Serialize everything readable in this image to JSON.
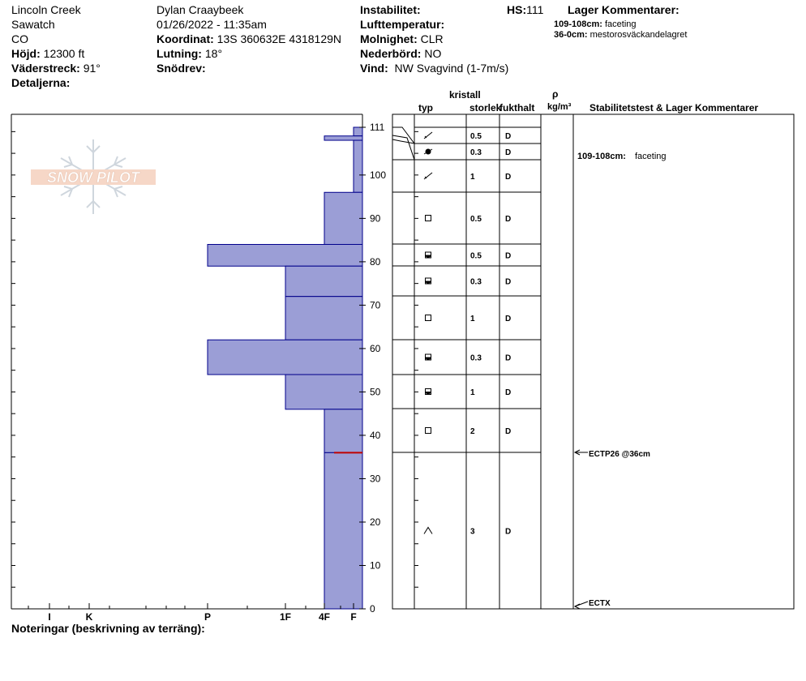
{
  "header": {
    "location": "Lincoln Creek",
    "range": "Sawatch",
    "state": "CO",
    "elevation_label": "Höjd:",
    "elevation_value": "12300 ft",
    "aspect_label": "Väderstreck:",
    "aspect_value": "91°",
    "details_label": "Detaljerna:",
    "observer": "Dylan Craaybeek",
    "datetime": "01/26/2022 - 11:35am",
    "coord_label": "Koordinat:",
    "coord_value": "13S 360632E 4318129N",
    "slope_label": "Lutning:",
    "slope_value": "18°",
    "drift_label": "Snödrev:",
    "instability_label": "Instabilitet:",
    "airtemp_label": "Lufttemperatur:",
    "sky_label": "Molnighet:",
    "sky_value": "CLR",
    "precip_label": "Nederbörd:",
    "precip_value": "NO",
    "wind_label": "Vind:",
    "wind_value": "NW Svagvind (1-7m/s)",
    "hs_label": "HS:",
    "hs_value": "111",
    "layer_comments_title": "Lager Kommentarer:",
    "layer_comments": [
      {
        "range": "109-108cm:",
        "text": "faceting"
      },
      {
        "range": "36-0cm:",
        "text": "mestorosväckandelagret"
      }
    ]
  },
  "logo_text": "SNOW PILOT",
  "footer": {
    "notes_label": "Noteringar (beskrivning av terräng):"
  },
  "table_headers": {
    "crystal": "kristall",
    "type": "typ",
    "size": "storlek",
    "moisture": "fukthalt",
    "rho": "ρ",
    "density_unit": "kg/m³",
    "stability": "Stabilitetstest & Lager Kommentarer"
  },
  "stability_comments": [
    {
      "depth": 108.5,
      "text": "109-108cm:",
      "extra": "faceting"
    }
  ],
  "stability_tests": [
    {
      "depth": 36,
      "text": "ECTP26 @36cm"
    },
    {
      "depth": 0,
      "text": "ECTX"
    }
  ],
  "colors": {
    "bar_fill": "#9b9ed6",
    "bar_stroke": "#00008b",
    "critical_layer": "#c00000"
  },
  "chart_data": {
    "type": "bar",
    "orientation": "horizontal",
    "xlabel": "",
    "ylabel": "",
    "ylim": [
      0,
      111
    ],
    "yticks": [
      0,
      10,
      20,
      30,
      40,
      50,
      60,
      70,
      80,
      90,
      100,
      111
    ],
    "hardness_ticks": [
      "I",
      "K",
      "P",
      "1F",
      "4F",
      "F"
    ],
    "critical_depth": 36,
    "layers": [
      {
        "top": 111,
        "bottom": 109,
        "hardness": "F",
        "grain": "mixed",
        "size": "",
        "moisture": ""
      },
      {
        "top": 109,
        "bottom": 108,
        "hardness": "4F",
        "grain": "facet",
        "size": "0.5",
        "moisture": "D"
      },
      {
        "top": 108,
        "bottom": 96,
        "hardness": "F",
        "grain": "round-facet",
        "size": "0.3",
        "moisture": "D"
      },
      {
        "top": 96,
        "bottom": 84,
        "hardness": "4F",
        "grain": "decomposing",
        "size": "1",
        "moisture": "D"
      },
      {
        "top": 84,
        "bottom": 79,
        "hardness": "P",
        "grain": "facet",
        "size": "0.5",
        "moisture": "D"
      },
      {
        "top": 79,
        "bottom": 72,
        "hardness": "1F",
        "grain": "mixed",
        "size": "0.5",
        "moisture": "D"
      },
      {
        "top": 72,
        "bottom": 62,
        "hardness": "1F",
        "grain": "mixed",
        "size": "0.3",
        "moisture": "D"
      },
      {
        "top": 62,
        "bottom": 54,
        "hardness": "P",
        "grain": "facet",
        "size": "1",
        "moisture": "D"
      },
      {
        "top": 54,
        "bottom": 46,
        "hardness": "1F",
        "grain": "mixed",
        "size": "0.3",
        "moisture": "D"
      },
      {
        "top": 46,
        "bottom": 36,
        "hardness": "4F",
        "grain": "mixed",
        "size": "1",
        "moisture": "D"
      },
      {
        "top": 36,
        "bottom": 0,
        "hardness": "4F",
        "grain": "facet",
        "size": "2",
        "moisture": "D"
      }
    ],
    "table_layers": [
      {
        "top": 111,
        "bottom": 109,
        "grain": "decomposing",
        "size": "0.5",
        "moisture": "D"
      },
      {
        "top": 109,
        "bottom": 108,
        "grain": "round-facet",
        "size": "0.3",
        "moisture": "D"
      },
      {
        "top": 108,
        "bottom": 96,
        "grain": "decomposing",
        "size": "1",
        "moisture": "D"
      },
      {
        "top": 96,
        "bottom": 84,
        "grain": "facet",
        "size": "0.5",
        "moisture": "D"
      },
      {
        "top": 84,
        "bottom": 79,
        "grain": "mixed",
        "size": "0.5",
        "moisture": "D"
      },
      {
        "top": 79,
        "bottom": 72,
        "grain": "mixed",
        "size": "0.3",
        "moisture": "D"
      },
      {
        "top": 72,
        "bottom": 62,
        "grain": "facet",
        "size": "1",
        "moisture": "D"
      },
      {
        "top": 62,
        "bottom": 54,
        "grain": "mixed",
        "size": "0.3",
        "moisture": "D"
      },
      {
        "top": 54,
        "bottom": 46,
        "grain": "mixed",
        "size": "1",
        "moisture": "D"
      },
      {
        "top": 46,
        "bottom": 36,
        "grain": "facet",
        "size": "2",
        "moisture": "D"
      },
      {
        "top": 36,
        "bottom": 0,
        "grain": "depth-hoar",
        "size": "3",
        "moisture": "D"
      }
    ]
  }
}
